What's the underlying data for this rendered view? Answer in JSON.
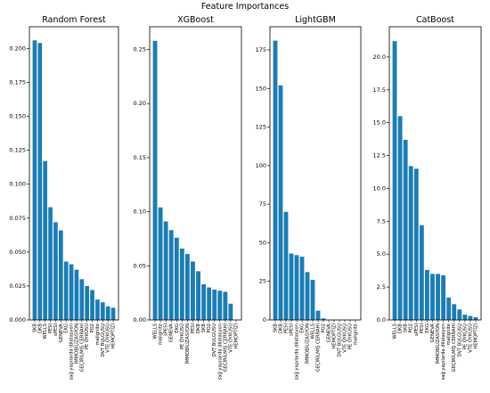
{
  "title": "Feature Importances",
  "chart_data": [
    {
      "type": "bar",
      "title": "Random Forest",
      "color": "#1a7db6",
      "categories": [
        "SKB",
        "DKB",
        "WELLS",
        "PESI",
        "sPESI",
        "GENEVA",
        "EKG",
        "sağ yapılarda dilatasyon",
        "İMMOBİLİZASYON",
        "GEÇİRİLMİŞ CERRAHİ",
        "PE ÖYKÜSÜ",
        "PO2",
        "malignite",
        "DVT BULGUSU",
        "VTE ÖYKÜSÜ",
        "HEMOPTİZİ"
      ],
      "values": [
        0.206,
        0.204,
        0.117,
        0.083,
        0.072,
        0.066,
        0.043,
        0.041,
        0.037,
        0.03,
        0.025,
        0.022,
        0.015,
        0.013,
        0.01,
        0.009
      ],
      "ylim": [
        0,
        0.216
      ],
      "yticks": [
        {
          "value": 0,
          "label": "0.000"
        },
        0.025,
        {
          "value": 0.05,
          "label": "0.050"
        },
        0.075,
        {
          "value": 0.1,
          "label": "0.100"
        },
        0.125,
        {
          "value": 0.15,
          "label": "0.150"
        },
        0.175,
        {
          "value": 0.2,
          "label": "0.200"
        }
      ]
    },
    {
      "type": "bar",
      "title": "XGBoost",
      "color": "#1a7db6",
      "categories": [
        "WELLS",
        "malignite",
        "sPESI",
        "GENEVA",
        "EKG",
        "PE ÖYKÜSÜ",
        "İMMOBİLİZASYON",
        "PESI",
        "DKB",
        "SKB",
        "PO2",
        "DVT BULGUSU",
        "sağ yapılarda dilatasyon",
        "GEÇİRİLMİŞ CERRAHİ",
        "VTE ÖYKÜSÜ",
        "HEMOPTİZİ"
      ],
      "values": [
        0.258,
        0.104,
        0.091,
        0.083,
        0.076,
        0.066,
        0.061,
        0.054,
        0.045,
        0.033,
        0.03,
        0.028,
        0.027,
        0.026,
        0.015,
        0
      ],
      "ylim": [
        0,
        0.271
      ],
      "yticks": [
        {
          "value": 0,
          "label": "0.00"
        },
        0.05,
        {
          "value": 0.1,
          "label": "0.10"
        },
        0.15,
        {
          "value": 0.2,
          "label": "0.20"
        },
        0.25
      ]
    },
    {
      "type": "bar",
      "title": "LightGBM",
      "color": "#1a7db6",
      "categories": [
        "SKB",
        "DKB",
        "PESI",
        "sPESI",
        "sağ yapılarda dilatasyon",
        "EKG",
        "İMMOBİLİZASYON",
        "WELLS",
        "GEÇİRİLMİŞ CERRAHİ",
        "PO2",
        "GENEVA",
        "HEMOPTİZİ",
        "DVT BULGUSU",
        "VTE ÖYKÜSÜ",
        "PE ÖYKÜSÜ",
        "malignite"
      ],
      "values": [
        181,
        152,
        70,
        43,
        42,
        41,
        31,
        26,
        6,
        1,
        0,
        0,
        0,
        0,
        0,
        0
      ],
      "ylim": [
        0,
        190
      ],
      "yticks": [
        0,
        25,
        50,
        75,
        100,
        125,
        150,
        175
      ]
    },
    {
      "type": "bar",
      "title": "CatBoost",
      "color": "#1a7db6",
      "categories": [
        "WELLS",
        "DKB",
        "SKB",
        "PO2",
        "sPESI",
        "PESI",
        "EKG",
        "GENEVA",
        "İMMOBİLİZASYON",
        "sağ yapılarda dilatasyon",
        "malignite",
        "GEÇİRİLMİŞ CERRAHİ",
        "DVT BULGUSU",
        "PE ÖYKÜSÜ",
        "VTE ÖYKÜSÜ",
        "HEMOPTİZİ"
      ],
      "values": [
        21.2,
        15.5,
        13.7,
        11.7,
        11.5,
        7.2,
        3.8,
        3.5,
        3.5,
        3.4,
        1.7,
        1.2,
        0.8,
        0.4,
        0.3,
        0.2
      ],
      "ylim": [
        0,
        22.3
      ],
      "yticks": [
        {
          "value": 0,
          "label": "0.0"
        },
        2.5,
        {
          "value": 5,
          "label": "5.0"
        },
        7.5,
        {
          "value": 10,
          "label": "10.0"
        },
        12.5,
        {
          "value": 15,
          "label": "15.0"
        },
        17.5,
        {
          "value": 20,
          "label": "20.0"
        }
      ]
    }
  ]
}
